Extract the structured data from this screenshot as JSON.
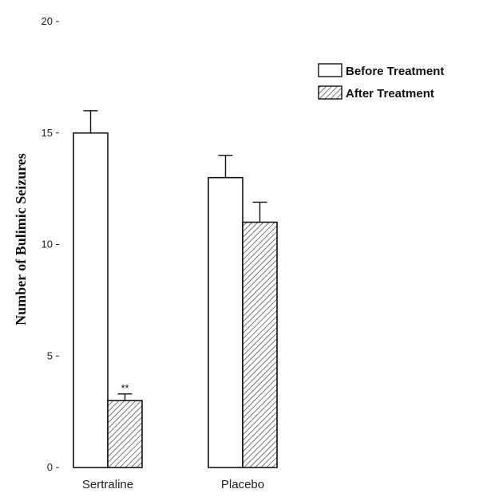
{
  "chart_data": {
    "type": "bar",
    "categories": [
      "Sertraline",
      "Placebo"
    ],
    "series": [
      {
        "name": "Before Treatment",
        "values": [
          15,
          13
        ],
        "error": [
          1,
          1
        ],
        "pattern": "open"
      },
      {
        "name": "After Treatment",
        "values": [
          3,
          11
        ],
        "error": [
          0.3,
          0.9
        ],
        "pattern": "hatched"
      }
    ],
    "ylabel": "Number of Bulimic Seizures",
    "ylim": [
      0,
      20
    ],
    "yticks": [
      0,
      5,
      10,
      15,
      20
    ],
    "annotations": [
      {
        "category": "Sertraline",
        "series": "After Treatment",
        "text": "**"
      }
    ],
    "legend_position": "top-right",
    "grid": false
  }
}
